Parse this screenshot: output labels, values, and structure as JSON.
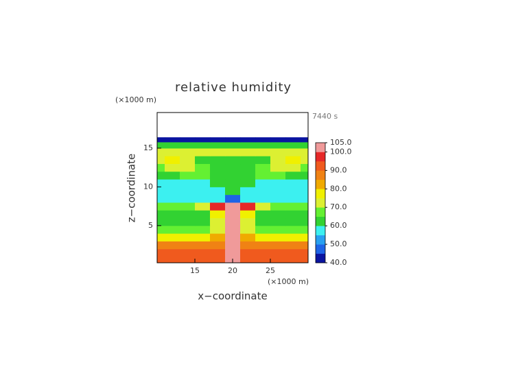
{
  "chart_data": {
    "type": "contour",
    "title": "relative humidity",
    "x_label": "x−coordinate",
    "y_label": "z−coordinate",
    "x_unit": "(×1000 m)",
    "y_unit": "(×1000 m)",
    "time_label": "7440 s",
    "xlim": [
      10,
      30
    ],
    "ylim": [
      0.2,
      19.6
    ],
    "xticks": [
      15,
      20,
      25
    ],
    "yticks": [
      5,
      10,
      15
    ],
    "x": [
      10,
      12,
      14,
      16,
      18,
      20,
      22,
      24,
      26,
      28,
      30
    ],
    "z": [
      0.5,
      1.5,
      2.5,
      3.5,
      4.5,
      5.5,
      6.5,
      7.5,
      8.5,
      9.5,
      10.5,
      11.5,
      12.5,
      13.5,
      14.5,
      15.5,
      16.1
    ],
    "values": [
      [
        93,
        93,
        93,
        93,
        93,
        102,
        93,
        93,
        93,
        93,
        93
      ],
      [
        92,
        92,
        92,
        92,
        92,
        102,
        92,
        92,
        92,
        92,
        92
      ],
      [
        86,
        86,
        86,
        86,
        88,
        102,
        88,
        86,
        86,
        86,
        86
      ],
      [
        76,
        76,
        76,
        76,
        80,
        101,
        80,
        76,
        76,
        76,
        76
      ],
      [
        68,
        68,
        68,
        68,
        72,
        101,
        72,
        68,
        68,
        68,
        68
      ],
      [
        64,
        64,
        64,
        64,
        70,
        102,
        70,
        64,
        64,
        64,
        64
      ],
      [
        62,
        62,
        62,
        62,
        75,
        103,
        75,
        62,
        62,
        62,
        62
      ],
      [
        66,
        66,
        66,
        72,
        98,
        100,
        98,
        72,
        66,
        66,
        66
      ],
      [
        57,
        57,
        57,
        57,
        55,
        48,
        55,
        57,
        57,
        57,
        57
      ],
      [
        56,
        56,
        56,
        56,
        58,
        62,
        58,
        56,
        56,
        56,
        56
      ],
      [
        57,
        57,
        57,
        57,
        60,
        64,
        60,
        57,
        57,
        57,
        57
      ],
      [
        60,
        60,
        68,
        66,
        62,
        60,
        62,
        66,
        68,
        60,
        60
      ],
      [
        66,
        70,
        72,
        66,
        60,
        60,
        60,
        66,
        72,
        70,
        66
      ],
      [
        70,
        76,
        70,
        62,
        62,
        62,
        62,
        62,
        70,
        76,
        70
      ],
      [
        72,
        72,
        72,
        72,
        74,
        74,
        74,
        72,
        72,
        72,
        72
      ],
      [
        64,
        64,
        64,
        64,
        64,
        64,
        64,
        64,
        64,
        64,
        64
      ],
      [
        44,
        44,
        44,
        44,
        44,
        44,
        44,
        44,
        44,
        44,
        44
      ]
    ],
    "colorbar": {
      "levels": [
        40,
        45,
        50,
        55,
        60,
        65,
        70,
        75,
        80,
        85,
        90,
        95,
        100,
        105
      ],
      "colors": [
        "#0a14a0",
        "#1e64e6",
        "#28a0f0",
        "#3cf0f0",
        "#32d232",
        "#64f032",
        "#dcf032",
        "#f0f000",
        "#f0aa00",
        "#f08214",
        "#f05a1e",
        "#e62828",
        "#f09a9a"
      ],
      "ticks": [
        {
          "value": 40,
          "label": "40.0"
        },
        {
          "value": 50,
          "label": "50.0"
        },
        {
          "value": 60,
          "label": "60.0"
        },
        {
          "value": 70,
          "label": "70.0"
        },
        {
          "value": 80,
          "label": "80.0"
        },
        {
          "value": 90,
          "label": "90.0"
        },
        {
          "value": 100,
          "label": "100.0"
        },
        {
          "value": 105,
          "label": "105.0"
        }
      ]
    }
  }
}
